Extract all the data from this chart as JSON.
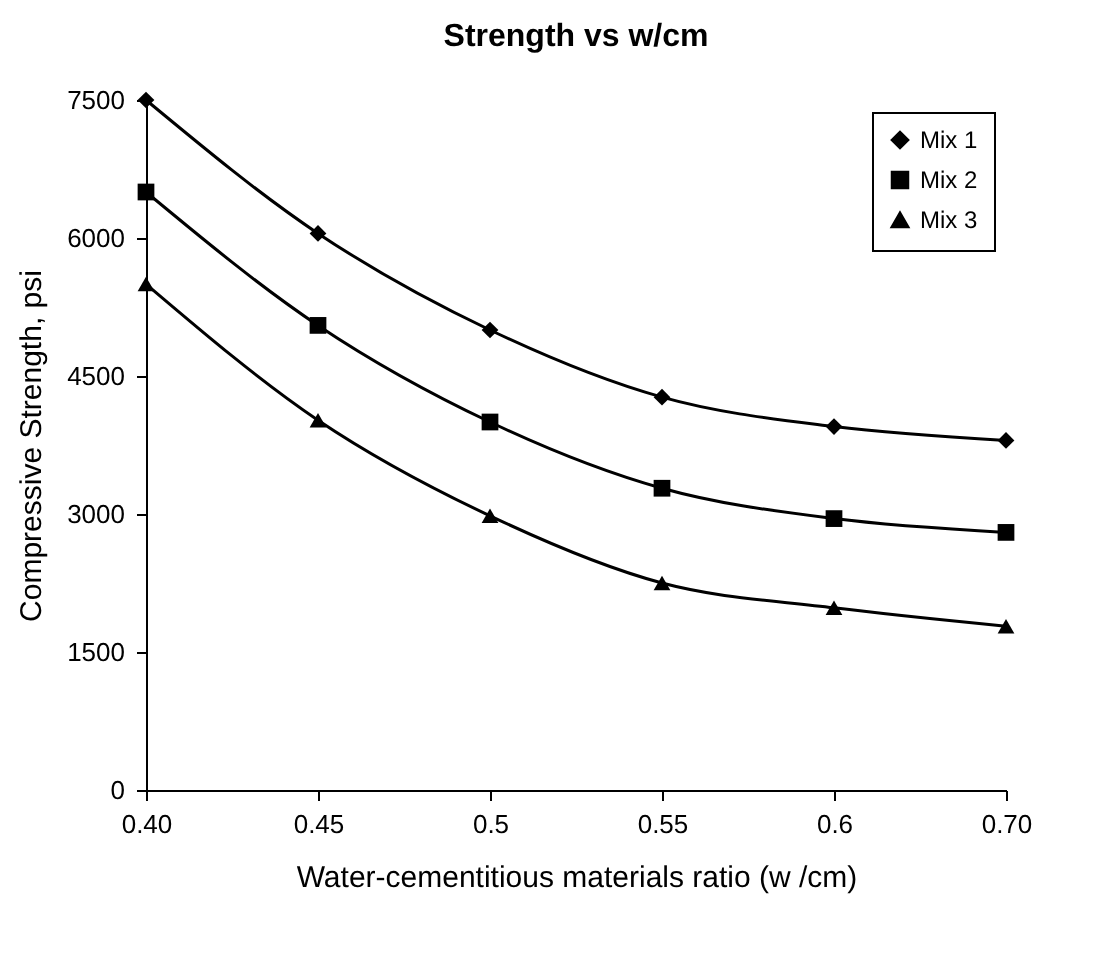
{
  "chart_data": {
    "type": "line",
    "title": "Strength vs w/cm",
    "xlabel": "Water-cementitious materials ratio (w /cm)",
    "ylabel": "Compressive Strength, psi",
    "categories": [
      "0.40",
      "0.45",
      "0.5",
      "0.55",
      "0.6",
      "0.70"
    ],
    "series": [
      {
        "name": "Mix 1",
        "color": "#000000",
        "marker": "diamond",
        "values": [
          7500,
          6050,
          5000,
          4270,
          3950,
          3800
        ]
      },
      {
        "name": "Mix 2",
        "color": "#000000",
        "marker": "square",
        "values": [
          6500,
          5050,
          4000,
          3280,
          2950,
          2800
        ]
      },
      {
        "name": "Mix 3",
        "color": "#000000",
        "marker": "triangle",
        "values": [
          5500,
          4020,
          2980,
          2250,
          1980,
          1780
        ]
      }
    ],
    "ylim": [
      0,
      7500
    ],
    "yticks": [
      0,
      1500,
      3000,
      4500,
      6000,
      7500
    ],
    "grid": false,
    "legend": "top right",
    "line_style": "solid"
  }
}
